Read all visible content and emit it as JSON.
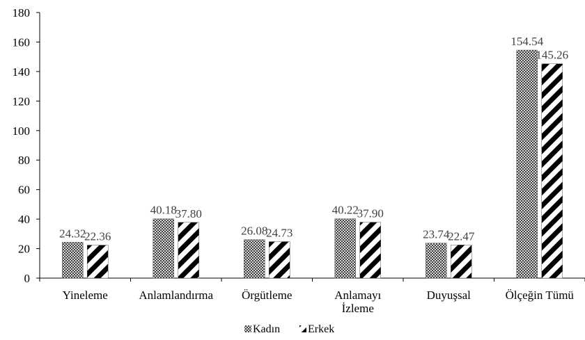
{
  "chart_data": {
    "type": "bar",
    "title": "",
    "xlabel": "",
    "ylabel": "",
    "ylim": [
      0,
      180
    ],
    "yticks": [
      0,
      20,
      40,
      60,
      80,
      100,
      120,
      140,
      160,
      180
    ],
    "grid": false,
    "legend_position": "bottom",
    "categories": [
      [
        "Yineleme"
      ],
      [
        "Anlamlandırma"
      ],
      [
        "Örgütleme"
      ],
      [
        "Anlamayı",
        "İzleme"
      ],
      [
        "Duyuşsal"
      ],
      [
        "Ölçeğin Tümü"
      ]
    ],
    "series": [
      {
        "name": "Kadın",
        "pattern": "checker",
        "color": "#404040",
        "values": [
          24.32,
          40.18,
          26.08,
          40.22,
          23.74,
          154.54
        ],
        "labels": [
          "24.32",
          "40.18",
          "26.08",
          "40.22",
          "23.74",
          "154.54"
        ]
      },
      {
        "name": "Erkek",
        "pattern": "diagonal-stripes",
        "color": "#000000",
        "values": [
          22.36,
          37.8,
          24.73,
          37.9,
          22.47,
          145.26
        ],
        "labels": [
          "22.36",
          "37.80",
          "24.73",
          "37.90",
          "22.47",
          "145.26"
        ]
      }
    ]
  }
}
